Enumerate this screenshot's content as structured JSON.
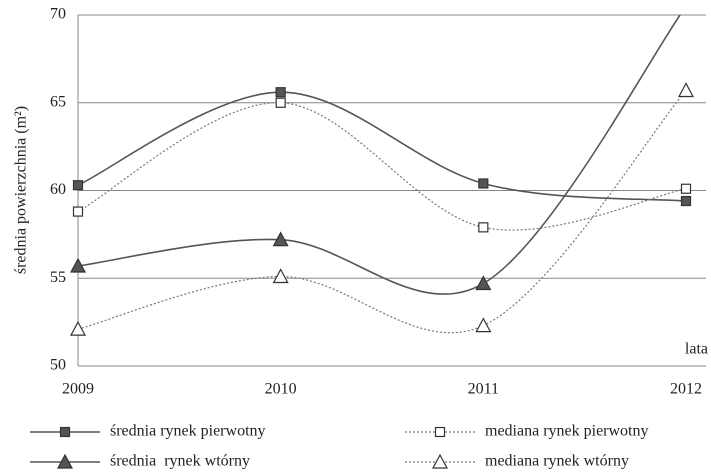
{
  "chart_data": {
    "type": "line",
    "y_label": "średnia powierzchnia (m²)",
    "x_label": "lata",
    "categories": [
      "2009",
      "2010",
      "2011",
      "2012"
    ],
    "ylim": [
      50,
      70
    ],
    "yticks": [
      50,
      55,
      60,
      65,
      70
    ],
    "grid": true,
    "series": [
      {
        "name": "średnia rynek pierwotny",
        "color": "#555555",
        "marker": "square",
        "filled": true,
        "dashed": false,
        "values": [
          60.3,
          65.6,
          60.4,
          59.4
        ]
      },
      {
        "name": "mediana rynek pierwotny",
        "color": "#777777",
        "marker": "square",
        "filled": false,
        "dashed": true,
        "values": [
          58.8,
          65.0,
          57.9,
          60.1
        ]
      },
      {
        "name": "średnia  rynek wtórny",
        "color": "#555555",
        "marker": "triangle",
        "filled": true,
        "dashed": false,
        "values": [
          55.7,
          57.2,
          54.7,
          70.5
        ]
      },
      {
        "name": "mediana rynek wtórny",
        "color": "#777777",
        "marker": "triangle",
        "filled": false,
        "dashed": true,
        "values": [
          52.1,
          55.1,
          52.3,
          65.7
        ]
      }
    ]
  }
}
